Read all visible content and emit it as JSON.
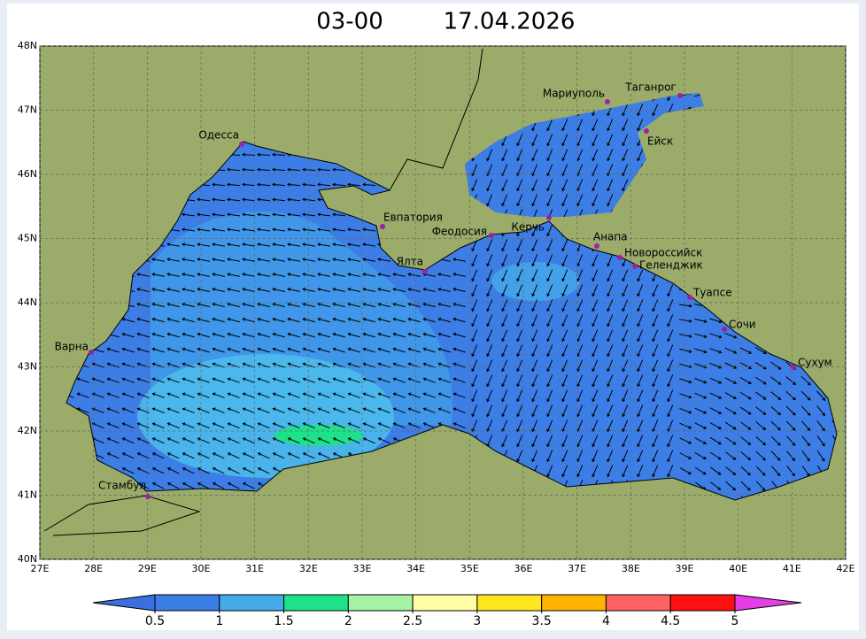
{
  "map": {
    "title": {
      "time": "03-00",
      "date": "17.04.2026"
    },
    "lon_ticks": [
      {
        "value": 27,
        "label": "27E"
      },
      {
        "value": 28,
        "label": "28E"
      },
      {
        "value": 29,
        "label": "29E"
      },
      {
        "value": 30,
        "label": "30E"
      },
      {
        "value": 31,
        "label": "31E"
      },
      {
        "value": 32,
        "label": "32E"
      },
      {
        "value": 33,
        "label": "33E"
      },
      {
        "value": 34,
        "label": "34E"
      },
      {
        "value": 35,
        "label": "35E"
      },
      {
        "value": 36,
        "label": "36E"
      },
      {
        "value": 37,
        "label": "37E"
      },
      {
        "value": 38,
        "label": "38E"
      },
      {
        "value": 39,
        "label": "39E"
      },
      {
        "value": 40,
        "label": "40E"
      },
      {
        "value": 41,
        "label": "41E"
      },
      {
        "value": 42,
        "label": "42E"
      }
    ],
    "lat_ticks": [
      {
        "value": 48,
        "label": "48N"
      },
      {
        "value": 47,
        "label": "47N"
      },
      {
        "value": 46,
        "label": "46N"
      },
      {
        "value": 45,
        "label": "45N"
      },
      {
        "value": 44,
        "label": "44N"
      },
      {
        "value": 43,
        "label": "43N"
      },
      {
        "value": 42,
        "label": "42N"
      },
      {
        "value": 41,
        "label": "41N"
      },
      {
        "value": 40,
        "label": "40N"
      }
    ],
    "lonlim": [
      27,
      42
    ],
    "latlim": [
      40,
      48
    ],
    "cities": [
      "Одесса",
      "Евпатория",
      "Феодосия",
      "Керчь",
      "Ялта",
      "Мариуполь",
      "Таганрог",
      "Ейск",
      "Анапа",
      "Новороссийск",
      "Геленджик",
      "Туапсе",
      "Сочи",
      "Сухум",
      "Варна",
      "Стамбул"
    ],
    "colorbar": {
      "levels": [
        0.5,
        1,
        1.5,
        2,
        2.5,
        3,
        3.5,
        4,
        4.5,
        5
      ],
      "colors": [
        "#3a6fe0",
        "#3d7ee6",
        "#44aaea",
        "#1ee28a",
        "#a6f2a6",
        "#ffffa8",
        "#ffe61e",
        "#ffb400",
        "#ff6262",
        "#ff1010",
        "#e43ee4"
      ]
    }
  }
}
